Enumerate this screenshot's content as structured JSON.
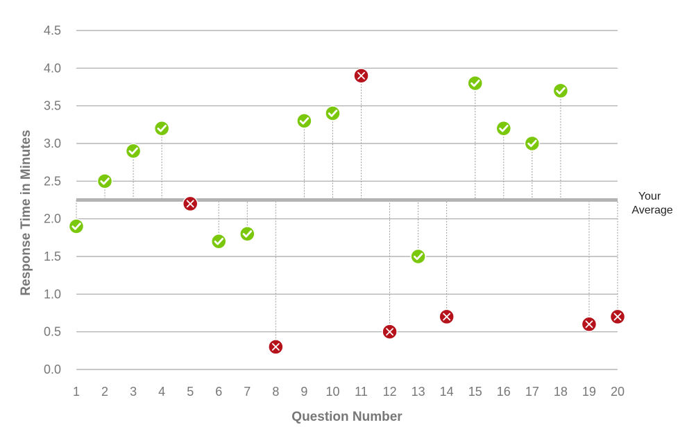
{
  "chart_data": {
    "type": "scatter",
    "title": "",
    "xlabel": "Question Number",
    "ylabel": "Response Time in Minutes",
    "ylim": [
      0,
      4.5
    ],
    "y_ticks": [
      "0.0",
      "0.5",
      "1.0",
      "1.5",
      "2.0",
      "2.5",
      "3.0",
      "3.5",
      "4.0",
      "4.5"
    ],
    "x_ticks": [
      "1",
      "2",
      "3",
      "4",
      "5",
      "6",
      "7",
      "8",
      "9",
      "10",
      "11",
      "12",
      "13",
      "14",
      "15",
      "16",
      "17",
      "18",
      "19",
      "20"
    ],
    "grid": true,
    "average": {
      "value": 2.25,
      "label_line1": "Your",
      "label_line2": "Average"
    },
    "colors": {
      "correct": "#7ac70c",
      "incorrect": "#b5121b",
      "average_line": "#b3b3b3",
      "grid": "#a6a6a6"
    },
    "points": [
      {
        "x": 1,
        "y": 1.9,
        "result": "correct"
      },
      {
        "x": 2,
        "y": 2.5,
        "result": "correct"
      },
      {
        "x": 3,
        "y": 2.9,
        "result": "correct"
      },
      {
        "x": 4,
        "y": 3.2,
        "result": "correct"
      },
      {
        "x": 5,
        "y": 2.2,
        "result": "incorrect"
      },
      {
        "x": 6,
        "y": 1.7,
        "result": "correct"
      },
      {
        "x": 7,
        "y": 1.8,
        "result": "correct"
      },
      {
        "x": 8,
        "y": 0.3,
        "result": "incorrect"
      },
      {
        "x": 9,
        "y": 3.3,
        "result": "correct"
      },
      {
        "x": 10,
        "y": 3.4,
        "result": "correct"
      },
      {
        "x": 11,
        "y": 3.9,
        "result": "incorrect"
      },
      {
        "x": 12,
        "y": 0.5,
        "result": "incorrect"
      },
      {
        "x": 13,
        "y": 1.5,
        "result": "correct"
      },
      {
        "x": 14,
        "y": 0.7,
        "result": "incorrect"
      },
      {
        "x": 15,
        "y": 3.8,
        "result": "correct"
      },
      {
        "x": 16,
        "y": 3.2,
        "result": "correct"
      },
      {
        "x": 17,
        "y": 3.0,
        "result": "correct"
      },
      {
        "x": 18,
        "y": 3.7,
        "result": "correct"
      },
      {
        "x": 19,
        "y": 0.6,
        "result": "incorrect"
      },
      {
        "x": 20,
        "y": 0.7,
        "result": "incorrect"
      }
    ],
    "icons": {
      "correct": "check-icon",
      "incorrect": "x-icon"
    }
  }
}
